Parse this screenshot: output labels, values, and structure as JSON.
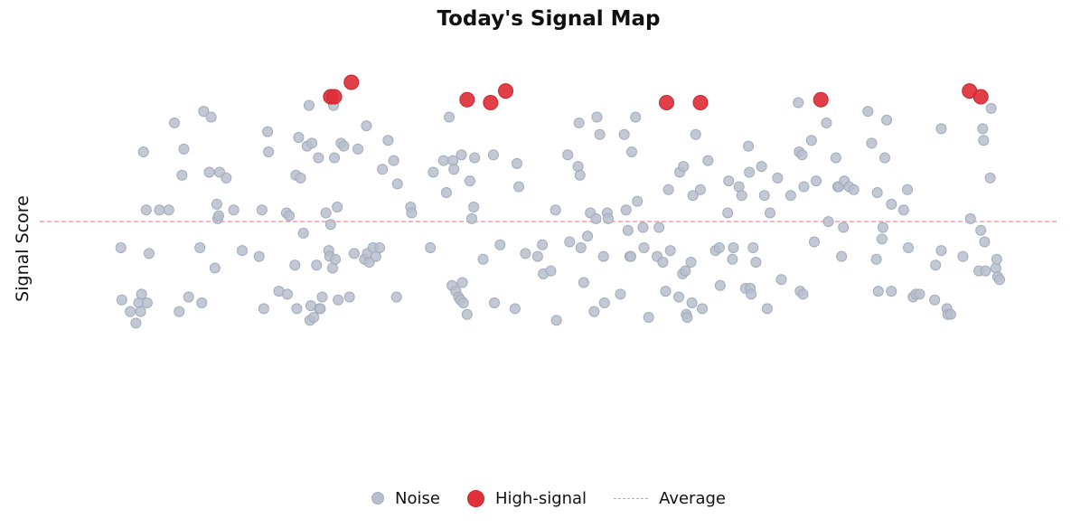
{
  "chart_data": {
    "type": "scatter",
    "title": "Today's Signal Map",
    "xlabel": "",
    "ylabel": "Signal Score",
    "xlim": [
      0,
      100
    ],
    "ylim": [
      0,
      100
    ],
    "grid": false,
    "legend_position": "bottom-center",
    "colors": {
      "noise": "#b8bfcc",
      "high_signal": "#e0303a",
      "average": "#e8989c"
    },
    "average": 52,
    "series": [
      {
        "name": "Noise",
        "points": [
          [
            4.2,
            43
          ],
          [
            4.3,
            25
          ],
          [
            5.2,
            21
          ],
          [
            5.8,
            17
          ],
          [
            6.1,
            24
          ],
          [
            6.3,
            21
          ],
          [
            6.4,
            27
          ],
          [
            6.6,
            76
          ],
          [
            6.9,
            56
          ],
          [
            7.0,
            24
          ],
          [
            7.2,
            41
          ],
          [
            8.3,
            56
          ],
          [
            9.3,
            56
          ],
          [
            9.9,
            86
          ],
          [
            10.4,
            21
          ],
          [
            10.7,
            68
          ],
          [
            10.9,
            77
          ],
          [
            11.4,
            26
          ],
          [
            12.6,
            43
          ],
          [
            12.8,
            24
          ],
          [
            13.0,
            90
          ],
          [
            13.6,
            69
          ],
          [
            13.8,
            88
          ],
          [
            14.2,
            36
          ],
          [
            14.4,
            58
          ],
          [
            14.5,
            53
          ],
          [
            14.6,
            54
          ],
          [
            14.7,
            69
          ],
          [
            15.4,
            67
          ],
          [
            16.2,
            56
          ],
          [
            17.1,
            42
          ],
          [
            18.9,
            40
          ],
          [
            19.2,
            56
          ],
          [
            19.4,
            22
          ],
          [
            19.8,
            83
          ],
          [
            19.9,
            76
          ],
          [
            21.0,
            28
          ],
          [
            21.8,
            55
          ],
          [
            21.9,
            27
          ],
          [
            22.1,
            54
          ],
          [
            22.7,
            37
          ],
          [
            22.8,
            68
          ],
          [
            22.9,
            22
          ],
          [
            23.1,
            81
          ],
          [
            23.3,
            67
          ],
          [
            23.6,
            48
          ],
          [
            24.0,
            78
          ],
          [
            24.2,
            92
          ],
          [
            24.3,
            18
          ],
          [
            24.4,
            23
          ],
          [
            24.5,
            79
          ],
          [
            24.7,
            19
          ],
          [
            25.0,
            37
          ],
          [
            25.2,
            74
          ],
          [
            25.3,
            22
          ],
          [
            25.4,
            22
          ],
          [
            25.6,
            26
          ],
          [
            26.0,
            55
          ],
          [
            26.3,
            42
          ],
          [
            26.4,
            40
          ],
          [
            26.5,
            51
          ],
          [
            26.7,
            36
          ],
          [
            26.8,
            92
          ],
          [
            26.9,
            74
          ],
          [
            27.0,
            39
          ],
          [
            27.2,
            57
          ],
          [
            27.3,
            25
          ],
          [
            27.6,
            79
          ],
          [
            27.9,
            78
          ],
          [
            28.5,
            26
          ],
          [
            29.0,
            41
          ],
          [
            29.4,
            77
          ],
          [
            30.1,
            39
          ],
          [
            30.3,
            85
          ],
          [
            30.4,
            41
          ],
          [
            30.6,
            38
          ],
          [
            31.0,
            43
          ],
          [
            31.3,
            40
          ],
          [
            31.7,
            43
          ],
          [
            32.0,
            70
          ],
          [
            32.6,
            80
          ],
          [
            33.2,
            73
          ],
          [
            33.5,
            26
          ],
          [
            33.6,
            65
          ],
          [
            35.0,
            57
          ],
          [
            35.1,
            55
          ],
          [
            37.1,
            43
          ],
          [
            37.4,
            69
          ],
          [
            38.5,
            73
          ],
          [
            38.8,
            62
          ],
          [
            39.1,
            88
          ],
          [
            39.4,
            30
          ],
          [
            39.5,
            73
          ],
          [
            39.6,
            70
          ],
          [
            39.8,
            28
          ],
          [
            40.1,
            26
          ],
          [
            40.3,
            25
          ],
          [
            40.4,
            75
          ],
          [
            40.5,
            31
          ],
          [
            40.6,
            24
          ],
          [
            41.0,
            20
          ],
          [
            41.3,
            66
          ],
          [
            41.5,
            53
          ],
          [
            41.7,
            57
          ],
          [
            41.8,
            74
          ],
          [
            42.7,
            39
          ],
          [
            43.8,
            75
          ],
          [
            43.9,
            24
          ],
          [
            44.5,
            44
          ],
          [
            46.1,
            22
          ],
          [
            46.3,
            72
          ],
          [
            46.5,
            64
          ],
          [
            47.2,
            41
          ],
          [
            48.5,
            40
          ],
          [
            49.0,
            44
          ],
          [
            49.1,
            34
          ],
          [
            49.9,
            35
          ],
          [
            50.4,
            56
          ],
          [
            50.5,
            18
          ],
          [
            51.7,
            75
          ],
          [
            51.9,
            45
          ],
          [
            52.8,
            71
          ],
          [
            52.9,
            86
          ],
          [
            53.0,
            68
          ],
          [
            53.1,
            43
          ],
          [
            53.4,
            31
          ],
          [
            53.8,
            47
          ],
          [
            54.1,
            55
          ],
          [
            54.5,
            21
          ],
          [
            54.7,
            53
          ],
          [
            54.8,
            88
          ],
          [
            55.1,
            82
          ],
          [
            55.5,
            40
          ],
          [
            55.6,
            24
          ],
          [
            55.9,
            55
          ],
          [
            56.0,
            53
          ],
          [
            57.3,
            27
          ],
          [
            57.7,
            82
          ],
          [
            57.9,
            56
          ],
          [
            58.1,
            49
          ],
          [
            58.3,
            40
          ],
          [
            58.4,
            40
          ],
          [
            58.5,
            76
          ],
          [
            58.9,
            88
          ],
          [
            59.1,
            59
          ],
          [
            59.7,
            50
          ],
          [
            59.8,
            43
          ],
          [
            60.3,
            19
          ],
          [
            61.2,
            40
          ],
          [
            61.4,
            50
          ],
          [
            61.8,
            38
          ],
          [
            62.1,
            28
          ],
          [
            62.4,
            63
          ],
          [
            62.6,
            42
          ],
          [
            63.5,
            26
          ],
          [
            63.6,
            69
          ],
          [
            63.9,
            34
          ],
          [
            64.0,
            71
          ],
          [
            64.2,
            35
          ],
          [
            64.3,
            20
          ],
          [
            64.4,
            19
          ],
          [
            64.8,
            38
          ],
          [
            64.9,
            24
          ],
          [
            65.0,
            61
          ],
          [
            65.3,
            82
          ],
          [
            65.8,
            63
          ],
          [
            66.0,
            22
          ],
          [
            66.6,
            73
          ],
          [
            67.4,
            42
          ],
          [
            67.8,
            43
          ],
          [
            67.9,
            30
          ],
          [
            68.7,
            55
          ],
          [
            68.8,
            66
          ],
          [
            69.2,
            39
          ],
          [
            69.3,
            43
          ],
          [
            69.9,
            64
          ],
          [
            70.2,
            61
          ],
          [
            70.6,
            29
          ],
          [
            70.9,
            78
          ],
          [
            71.0,
            69
          ],
          [
            71.1,
            29
          ],
          [
            71.2,
            27
          ],
          [
            71.4,
            43
          ],
          [
            71.7,
            38
          ],
          [
            72.3,
            71
          ],
          [
            72.6,
            61
          ],
          [
            72.9,
            22
          ],
          [
            73.2,
            55
          ],
          [
            74.0,
            67
          ],
          [
            74.4,
            32
          ],
          [
            75.4,
            61
          ],
          [
            76.2,
            93
          ],
          [
            76.3,
            76
          ],
          [
            76.4,
            28
          ],
          [
            76.6,
            75
          ],
          [
            76.7,
            27
          ],
          [
            76.8,
            64
          ],
          [
            77.6,
            80
          ],
          [
            77.9,
            45
          ],
          [
            78.1,
            66
          ],
          [
            79.2,
            86
          ],
          [
            79.4,
            52
          ],
          [
            80.2,
            74
          ],
          [
            80.4,
            64
          ],
          [
            80.5,
            64
          ],
          [
            80.8,
            40
          ],
          [
            81.0,
            50
          ],
          [
            81.1,
            66
          ],
          [
            81.6,
            64
          ],
          [
            82.1,
            63
          ],
          [
            83.6,
            90
          ],
          [
            84.0,
            79
          ],
          [
            84.5,
            39
          ],
          [
            84.6,
            62
          ],
          [
            84.7,
            28
          ],
          [
            85.1,
            46
          ],
          [
            85.2,
            50
          ],
          [
            85.4,
            74
          ],
          [
            85.6,
            87
          ],
          [
            86.1,
            58
          ],
          [
            86.1,
            28
          ],
          [
            87.4,
            56
          ],
          [
            87.8,
            63
          ],
          [
            87.9,
            43
          ],
          [
            88.4,
            26
          ],
          [
            88.7,
            27
          ],
          [
            89.1,
            27
          ],
          [
            90.7,
            25
          ],
          [
            90.8,
            37
          ],
          [
            91.4,
            42
          ],
          [
            91.4,
            84
          ],
          [
            92.0,
            22
          ],
          [
            92.1,
            20
          ],
          [
            92.4,
            20
          ],
          [
            93.7,
            40
          ],
          [
            94.5,
            53
          ],
          [
            95.4,
            35
          ],
          [
            95.6,
            49
          ],
          [
            95.8,
            84
          ],
          [
            95.9,
            80
          ],
          [
            96.0,
            45
          ],
          [
            96.1,
            35
          ],
          [
            96.6,
            67
          ],
          [
            96.7,
            91
          ],
          [
            97.2,
            36
          ],
          [
            97.3,
            39
          ],
          [
            97.4,
            33
          ],
          [
            97.6,
            32
          ]
        ]
      },
      {
        "name": "High-signal",
        "points": [
          [
            26.5,
            95
          ],
          [
            26.9,
            95
          ],
          [
            28.7,
            100
          ],
          [
            41.0,
            94
          ],
          [
            43.5,
            93
          ],
          [
            45.1,
            97
          ],
          [
            62.2,
            93
          ],
          [
            65.8,
            93
          ],
          [
            78.6,
            94
          ],
          [
            94.4,
            97
          ],
          [
            95.6,
            95
          ]
        ]
      }
    ],
    "legend": [
      "Noise",
      "High-signal",
      "Average"
    ]
  }
}
